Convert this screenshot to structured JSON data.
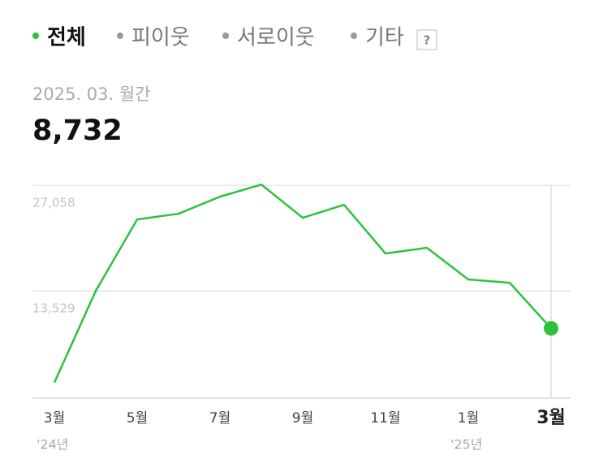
{
  "tabs": [
    {
      "label": "전체",
      "selected": true
    },
    {
      "label": "피이웃",
      "selected": false
    },
    {
      "label": "서로이웃",
      "selected": false
    },
    {
      "label": "기타",
      "selected": false
    }
  ],
  "help": "?",
  "summary": {
    "period": "2025. 03. 월간",
    "value": "8,732"
  },
  "chart_data": {
    "type": "line",
    "categories": [
      "3월",
      null,
      "5월",
      null,
      "7월",
      null,
      "9월",
      null,
      "11월",
      null,
      "1월",
      null,
      "3월"
    ],
    "x_sublabels": [
      "'24년",
      null,
      null,
      null,
      null,
      null,
      null,
      null,
      null,
      null,
      "'25년",
      null,
      null
    ],
    "series": [
      {
        "name": "전체",
        "color": "#2dc23e",
        "values": [
          1770,
          13529,
          22690,
          23420,
          25600,
          27160,
          22900,
          24560,
          18320,
          19050,
          14990,
          14570,
          8732
        ]
      }
    ],
    "ylim": [
      0,
      27800
    ],
    "yticks": [
      {
        "value": 13529,
        "label": "13,529"
      },
      {
        "value": 27058,
        "label": "27,058"
      }
    ],
    "grid": true
  }
}
